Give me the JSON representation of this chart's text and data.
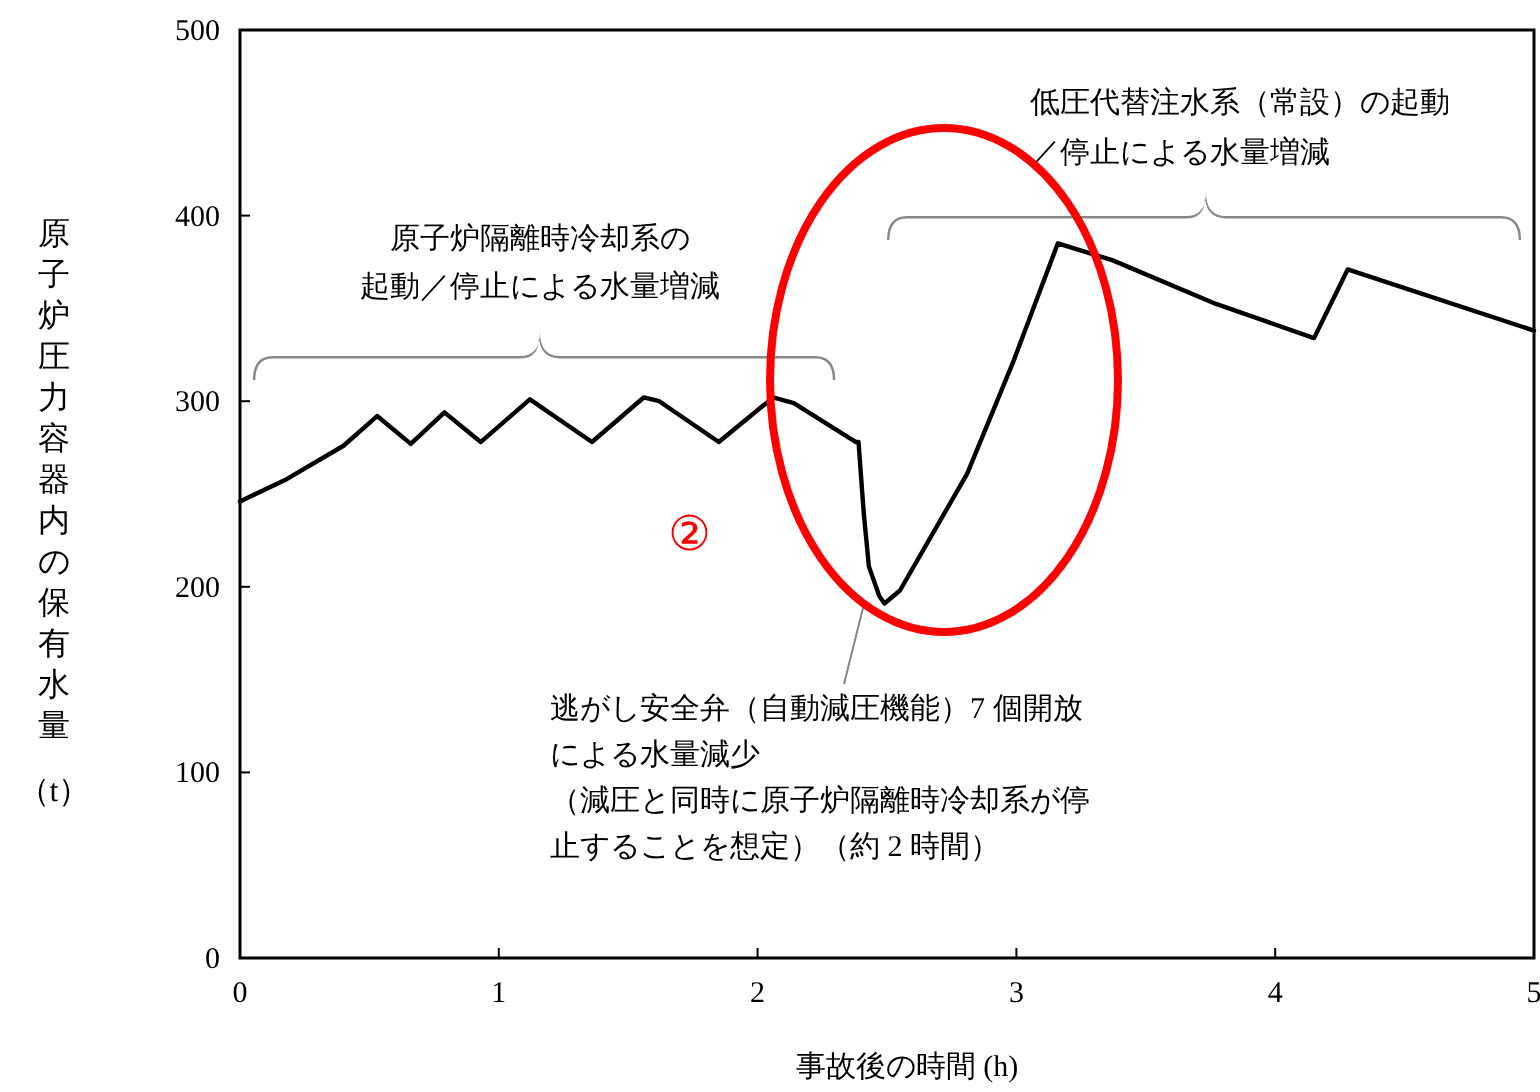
{
  "chart_data": {
    "type": "line",
    "xlabel": "事故後の時間 (h)",
    "ylabel": "原子炉圧力容器内の保有水量（t）",
    "x": [
      0,
      0.18,
      0.4,
      0.53,
      0.66,
      0.79,
      0.93,
      1.12,
      1.36,
      1.56,
      1.62,
      1.85,
      2.06,
      2.14,
      2.38,
      2.39,
      2.41,
      2.43,
      2.47,
      2.49,
      2.55,
      2.81,
      2.99,
      3.16,
      3.37,
      3.76,
      4.15,
      4.28,
      5.0
    ],
    "series": [
      {
        "color": "#000000",
        "values": [
          246,
          258,
          276,
          292,
          277,
          294,
          278,
          301,
          278,
          302,
          300,
          278,
          302,
          299,
          278,
          278,
          240,
          211,
          195,
          191,
          198,
          261,
          322,
          385,
          376,
          353,
          334,
          371,
          338
        ]
      }
    ],
    "xlim": [
      0,
      5
    ],
    "xticks": [
      0,
      1,
      2,
      3,
      4,
      5
    ],
    "ylim": [
      0,
      500
    ],
    "yticks": [
      0,
      100,
      200,
      300,
      400,
      500
    ],
    "grid": false,
    "marker": "none",
    "line_style": "solid",
    "annotations": [
      "原子炉隔離時冷却系の起動／停止による水量増減",
      "低圧代替注水系（常設）の起動／停止による水量増減",
      "逃がし安全弁（自動減圧機能）7 個開放による水量減少（減圧と同時に原子炉隔離時冷却系が停止することを想定）（約 2 時間）",
      "②"
    ]
  }
}
